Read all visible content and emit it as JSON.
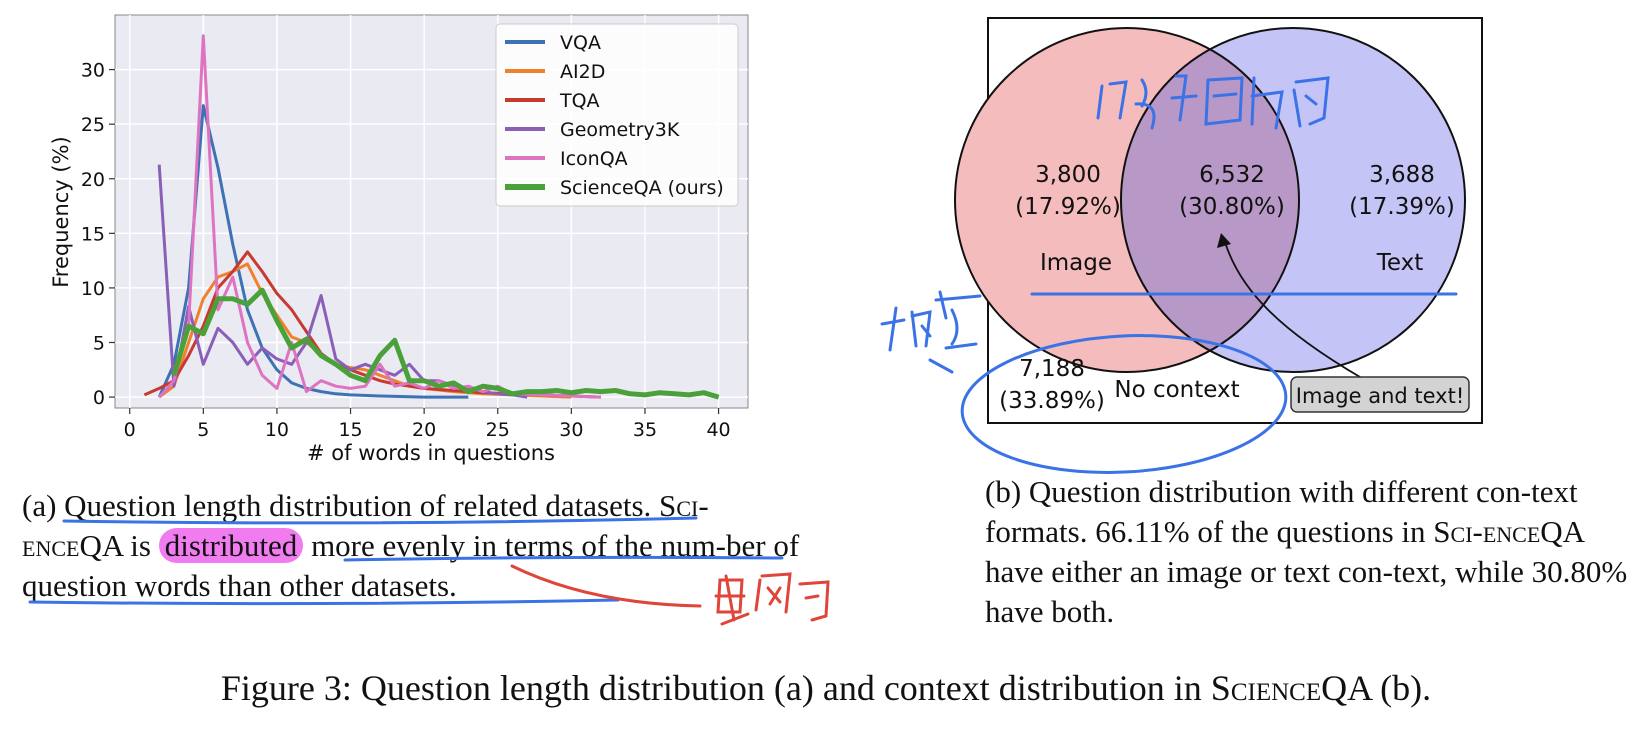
{
  "chart_data": {
    "type": "line",
    "title": "",
    "xlabel": "# of words in questions",
    "ylabel": "Frequency (%)",
    "xlim": [
      -1,
      42
    ],
    "ylim": [
      -1,
      35
    ],
    "xticks": [
      0,
      5,
      10,
      15,
      20,
      25,
      30,
      35,
      40
    ],
    "yticks": [
      0,
      5,
      10,
      15,
      20,
      25,
      30
    ],
    "grid": true,
    "legend_position": "top-right",
    "series": [
      {
        "name": "VQA",
        "color": "#3d72b4",
        "width": 3,
        "points": [
          [
            2,
            0
          ],
          [
            3,
            3
          ],
          [
            4,
            10
          ],
          [
            5,
            26.7
          ],
          [
            6,
            21
          ],
          [
            7,
            14
          ],
          [
            8,
            8
          ],
          [
            9,
            4.5
          ],
          [
            10,
            2.5
          ],
          [
            11,
            1.3
          ],
          [
            12,
            0.8
          ],
          [
            13,
            0.5
          ],
          [
            14,
            0.3
          ],
          [
            15,
            0.2
          ],
          [
            17,
            0.1
          ],
          [
            20,
            0
          ],
          [
            23,
            0
          ]
        ]
      },
      {
        "name": "AI2D",
        "color": "#f0812b",
        "width": 3,
        "points": [
          [
            2,
            0
          ],
          [
            3,
            1
          ],
          [
            4,
            5
          ],
          [
            5,
            9
          ],
          [
            6,
            11
          ],
          [
            7,
            11.5
          ],
          [
            8,
            12.2
          ],
          [
            9,
            9.5
          ],
          [
            10,
            7.5
          ],
          [
            11,
            5.5
          ],
          [
            12,
            5
          ],
          [
            13,
            4
          ],
          [
            14,
            3
          ],
          [
            15,
            2.7
          ],
          [
            16,
            2.5
          ],
          [
            17,
            2
          ],
          [
            18,
            1.5
          ],
          [
            19,
            1
          ],
          [
            20,
            0.8
          ],
          [
            22,
            0.5
          ],
          [
            24,
            0.3
          ],
          [
            26,
            0.2
          ],
          [
            28,
            0.1
          ],
          [
            30,
            0
          ]
        ]
      },
      {
        "name": "TQA",
        "color": "#c83a2f",
        "width": 3,
        "points": [
          [
            1,
            0.2
          ],
          [
            2,
            0.8
          ],
          [
            3,
            1.5
          ],
          [
            4,
            3.8
          ],
          [
            5,
            6.5
          ],
          [
            6,
            10
          ],
          [
            7,
            11.5
          ],
          [
            8,
            13.3
          ],
          [
            9,
            11.5
          ],
          [
            10,
            9.5
          ],
          [
            11,
            8
          ],
          [
            12,
            6
          ],
          [
            13,
            4
          ],
          [
            14,
            3
          ],
          [
            15,
            2.5
          ],
          [
            16,
            2
          ],
          [
            17,
            1.5
          ],
          [
            18,
            1.2
          ],
          [
            19,
            1
          ],
          [
            20,
            0.8
          ],
          [
            22,
            0.6
          ],
          [
            24,
            0.4
          ],
          [
            26,
            0.3
          ],
          [
            28,
            0.2
          ],
          [
            30,
            0.1
          ],
          [
            32,
            0
          ]
        ]
      },
      {
        "name": "Geometry3K",
        "color": "#8a5fb8",
        "width": 3,
        "points": [
          [
            2,
            21.3
          ],
          [
            3,
            1
          ],
          [
            4,
            8.3
          ],
          [
            5,
            3
          ],
          [
            6,
            6.3
          ],
          [
            7,
            5
          ],
          [
            8,
            3
          ],
          [
            9,
            4.5
          ],
          [
            10,
            3.5
          ],
          [
            11,
            3
          ],
          [
            12,
            5
          ],
          [
            13,
            9.3
          ],
          [
            14,
            3.5
          ],
          [
            15,
            2.5
          ],
          [
            16,
            3
          ],
          [
            17,
            2.5
          ],
          [
            18,
            2
          ],
          [
            19,
            3
          ],
          [
            20,
            1.5
          ],
          [
            21,
            1.5
          ],
          [
            22,
            1
          ],
          [
            23,
            0.8
          ],
          [
            24,
            0.5
          ],
          [
            25,
            0.3
          ],
          [
            26,
            0.2
          ],
          [
            27,
            0
          ]
        ]
      },
      {
        "name": "IconQA",
        "color": "#de73c2",
        "width": 3,
        "points": [
          [
            2,
            0
          ],
          [
            3,
            1.5
          ],
          [
            4,
            6.5
          ],
          [
            5,
            33.1
          ],
          [
            6,
            8
          ],
          [
            7,
            11
          ],
          [
            8,
            5
          ],
          [
            9,
            2
          ],
          [
            10,
            0.8
          ],
          [
            11,
            5
          ],
          [
            12,
            0.5
          ],
          [
            13,
            1.5
          ],
          [
            14,
            1
          ],
          [
            15,
            0.8
          ],
          [
            16,
            1
          ],
          [
            17,
            3
          ],
          [
            18,
            1
          ],
          [
            19,
            1.3
          ],
          [
            20,
            0.8
          ],
          [
            21,
            1.5
          ],
          [
            22,
            0.8
          ],
          [
            23,
            1
          ],
          [
            24,
            0.5
          ],
          [
            25,
            1
          ],
          [
            26,
            0.3
          ],
          [
            28,
            0.2
          ],
          [
            30,
            0.1
          ],
          [
            32,
            0
          ]
        ]
      },
      {
        "name": "ScienceQA (ours)",
        "color": "#4aa13a",
        "width": 5,
        "points": [
          [
            3,
            2
          ],
          [
            4,
            6.5
          ],
          [
            5,
            5.8
          ],
          [
            6,
            9
          ],
          [
            7,
            9
          ],
          [
            8,
            8.5
          ],
          [
            9,
            9.8
          ],
          [
            10,
            7
          ],
          [
            11,
            4.5
          ],
          [
            12,
            5.3
          ],
          [
            13,
            3.8
          ],
          [
            14,
            3
          ],
          [
            15,
            2
          ],
          [
            16,
            1.5
          ],
          [
            17,
            3.8
          ],
          [
            18,
            5.2
          ],
          [
            19,
            1.5
          ],
          [
            20,
            1.5
          ],
          [
            21,
            1
          ],
          [
            22,
            1.3
          ],
          [
            23,
            0.5
          ],
          [
            24,
            1
          ],
          [
            25,
            0.8
          ],
          [
            26,
            0.3
          ],
          [
            27,
            0.5
          ],
          [
            28,
            0.5
          ],
          [
            29,
            0.6
          ],
          [
            30,
            0.4
          ],
          [
            31,
            0.6
          ],
          [
            32,
            0.5
          ],
          [
            33,
            0.6
          ],
          [
            34,
            0.3
          ],
          [
            35,
            0.2
          ],
          [
            36,
            0.4
          ],
          [
            37,
            0.3
          ],
          [
            38,
            0.2
          ],
          [
            39,
            0.4
          ],
          [
            40,
            0
          ]
        ]
      }
    ]
  },
  "venn": {
    "image_only": {
      "count": "3,800",
      "percent": "(17.92%)",
      "label": "Image"
    },
    "both": {
      "count": "6,532",
      "percent": "(30.80%)"
    },
    "text_only": {
      "count": "3,688",
      "percent": "(17.39%)",
      "label": "Text"
    },
    "no_context": {
      "count": "7,188",
      "percent": "(33.89%)",
      "label": "No context"
    },
    "callout": "Image and text!",
    "colors": {
      "image": "#f4bcbc",
      "text": "#c4c4f7",
      "overlap": "#b898c6",
      "callout_bg": "#d3d3d3"
    }
  },
  "captions": {
    "a": {
      "t1": "(a) Question length distribution of related datasets. S",
      "t2": "ci-",
      "t3": "ence",
      "t4": "QA is ",
      "t5": "distributed",
      "t6": " more evenly in terms of the num-ber of question words than other datasets."
    },
    "b": {
      "t1": "(b) Question distribution with different con-text formats. 66.11% of the questions in S",
      "t2": "ci-ence",
      "t3": "QA have either an image or text con-text, while 30.80% have both."
    },
    "figure": {
      "t1": "Figure 3: Question length distribution (a) and context distribution in S",
      "t2": "cience",
      "t3": "QA (b)."
    }
  },
  "annotations": {
    "ink_color": "#3b73e6",
    "red_ink_color": "#e0453a",
    "highlight_color": "#f07cf0"
  }
}
